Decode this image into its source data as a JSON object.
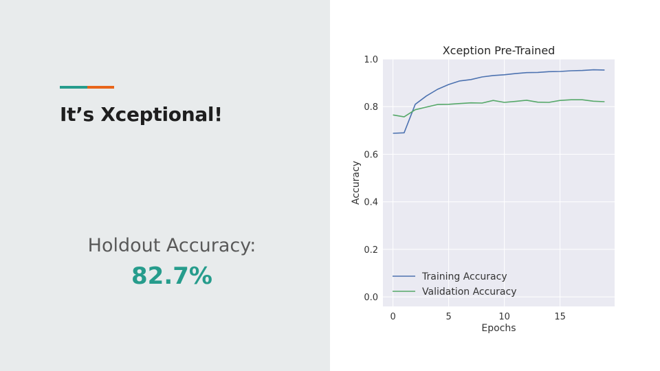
{
  "slide": {
    "title": "It’s Xceptional!",
    "holdout_label": "Holdout Accuracy:",
    "holdout_value": "82.7%",
    "colors": {
      "teal": "#269c8c",
      "orange": "#e8651a"
    }
  },
  "chart_data": {
    "type": "line",
    "title": "Xception Pre-Trained",
    "xlabel": "Epochs",
    "ylabel": "Accuracy",
    "xlim": [
      -0.9,
      19.9
    ],
    "ylim": [
      -0.04,
      1.0
    ],
    "xticks": [
      0,
      5,
      10,
      15
    ],
    "yticks": [
      0.0,
      0.2,
      0.4,
      0.6,
      0.8,
      1.0
    ],
    "grid": true,
    "legend_position": "lower-left",
    "x": [
      0,
      1,
      2,
      3,
      4,
      5,
      6,
      7,
      8,
      9,
      10,
      11,
      12,
      13,
      14,
      15,
      16,
      17,
      18,
      19
    ],
    "series": [
      {
        "name": "Training Accuracy",
        "color": "#4c72b0",
        "values": [
          0.688,
          0.69,
          0.81,
          0.845,
          0.873,
          0.893,
          0.908,
          0.914,
          0.925,
          0.931,
          0.934,
          0.939,
          0.943,
          0.944,
          0.947,
          0.948,
          0.951,
          0.952,
          0.955,
          0.954
        ]
      },
      {
        "name": "Validation Accuracy",
        "color": "#55a868",
        "values": [
          0.765,
          0.757,
          0.787,
          0.798,
          0.809,
          0.81,
          0.813,
          0.816,
          0.815,
          0.826,
          0.818,
          0.822,
          0.827,
          0.819,
          0.818,
          0.826,
          0.829,
          0.829,
          0.823,
          0.821
        ]
      }
    ]
  }
}
